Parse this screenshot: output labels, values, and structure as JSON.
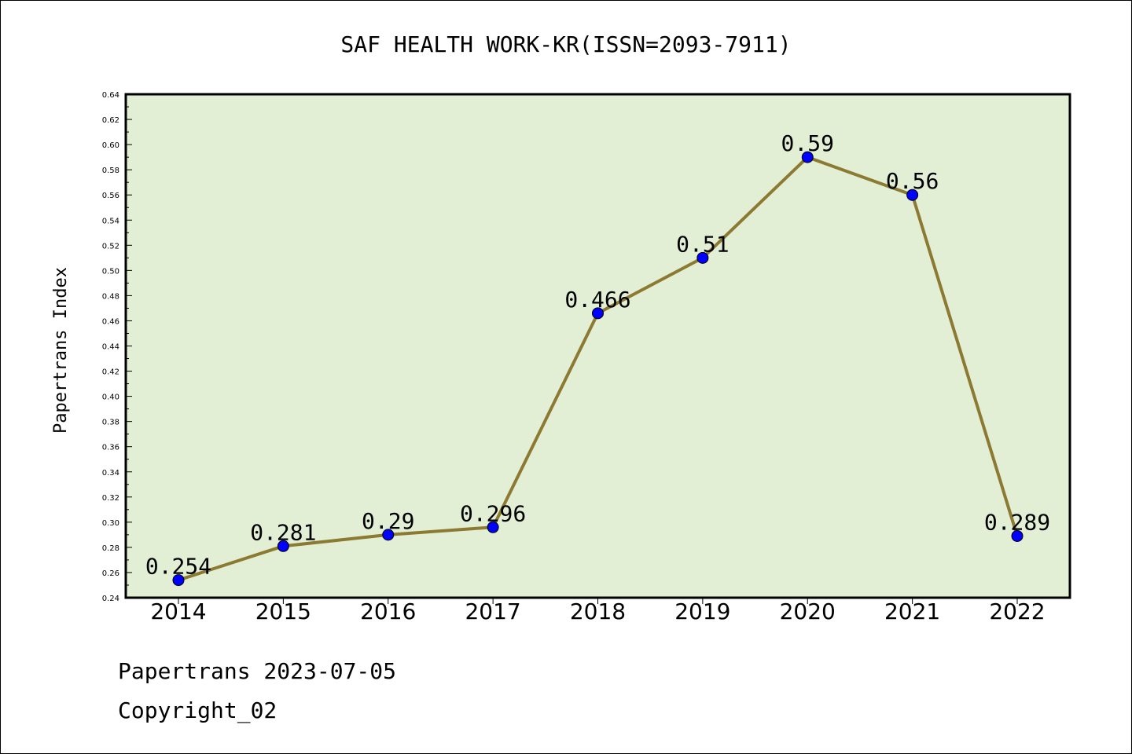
{
  "chart_data": {
    "type": "line",
    "title": "SAF HEALTH WORK-KR(ISSN=2093-7911)",
    "xlabel": "",
    "ylabel": "Papertrans Index",
    "categories": [
      "2014",
      "2015",
      "2016",
      "2017",
      "2018",
      "2019",
      "2020",
      "2021",
      "2022"
    ],
    "series": [
      {
        "values": [
          0.254,
          0.281,
          0.29,
          0.296,
          0.466,
          0.51,
          0.59,
          0.56,
          0.289
        ],
        "labels": [
          "0.254",
          "0.281",
          "0.29",
          "0.296",
          "0.466",
          "0.51",
          "0.59",
          "0.56",
          "0.289"
        ]
      }
    ],
    "ylim": [
      0.24,
      0.64
    ],
    "yticks": [
      "0.24",
      "0.26",
      "0.28",
      "0.30",
      "0.32",
      "0.34",
      "0.36",
      "0.38",
      "0.40",
      "0.42",
      "0.44",
      "0.46",
      "0.48",
      "0.50",
      "0.52",
      "0.54",
      "0.56",
      "0.58",
      "0.60",
      "0.62",
      "0.64"
    ],
    "grid": false,
    "colors": {
      "plot_background": "#e2efd5",
      "line": "#8c7a32",
      "marker": "#0000ff"
    }
  },
  "footer": {
    "line1": "Papertrans 2023-07-05",
    "line2": "Copyright_02"
  }
}
